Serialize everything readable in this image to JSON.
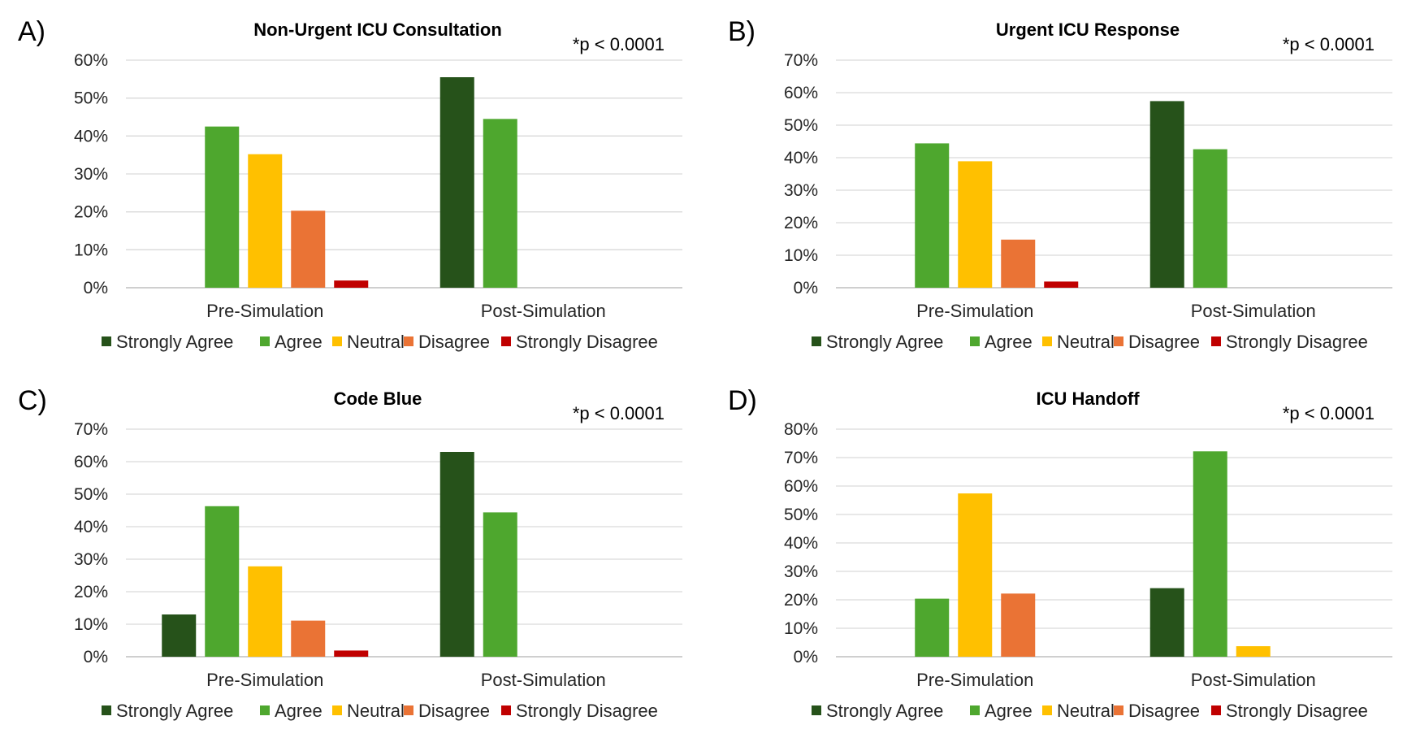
{
  "legend": [
    {
      "name": "Strongly Agree",
      "color": "#26521a"
    },
    {
      "name": "Agree",
      "color": "#4ea72e"
    },
    {
      "name": "Neutral",
      "color": "#ffc000"
    },
    {
      "name": "Disagree",
      "color": "#ea7335"
    },
    {
      "name": "Strongly Disagree",
      "color": "#c00000"
    }
  ],
  "chart_data": [
    {
      "type": "bar",
      "panel_label": "A)",
      "title": "Non-Urgent ICU Consultation",
      "annotation": "*p < 0.0001",
      "categories": [
        "Pre-Simulation",
        "Post-Simulation"
      ],
      "ylim": [
        0,
        60
      ],
      "yticks": [
        "0%",
        "10%",
        "20%",
        "30%",
        "40%",
        "50%",
        "60%"
      ],
      "series": [
        {
          "name": "Strongly Agree",
          "values": [
            0,
            55.5
          ]
        },
        {
          "name": "Agree",
          "values": [
            42.5,
            44.5
          ]
        },
        {
          "name": "Neutral",
          "values": [
            35.2,
            0
          ]
        },
        {
          "name": "Disagree",
          "values": [
            20.3,
            0
          ]
        },
        {
          "name": "Strongly Disagree",
          "values": [
            1.9,
            0
          ]
        }
      ],
      "legend_position": "bottom",
      "grid": true
    },
    {
      "type": "bar",
      "panel_label": "B)",
      "title": "Urgent ICU Response",
      "annotation": "*p < 0.0001",
      "categories": [
        "Pre-Simulation",
        "Post-Simulation"
      ],
      "ylim": [
        0,
        70
      ],
      "yticks": [
        "0%",
        "10%",
        "20%",
        "30%",
        "40%",
        "50%",
        "60%",
        "70%"
      ],
      "series": [
        {
          "name": "Strongly Agree",
          "values": [
            0,
            57.4
          ]
        },
        {
          "name": "Agree",
          "values": [
            44.4,
            42.6
          ]
        },
        {
          "name": "Neutral",
          "values": [
            38.9,
            0
          ]
        },
        {
          "name": "Disagree",
          "values": [
            14.8,
            0
          ]
        },
        {
          "name": "Strongly Disagree",
          "values": [
            1.9,
            0
          ]
        }
      ],
      "legend_position": "bottom",
      "grid": true
    },
    {
      "type": "bar",
      "panel_label": "C)",
      "title": "Code Blue",
      "annotation": "*p < 0.0001",
      "categories": [
        "Pre-Simulation",
        "Post-Simulation"
      ],
      "ylim": [
        0,
        70
      ],
      "yticks": [
        "0%",
        "10%",
        "20%",
        "30%",
        "40%",
        "50%",
        "60%",
        "70%"
      ],
      "series": [
        {
          "name": "Strongly Agree",
          "values": [
            13.0,
            63.0
          ]
        },
        {
          "name": "Agree",
          "values": [
            46.3,
            44.4
          ]
        },
        {
          "name": "Neutral",
          "values": [
            27.8,
            0
          ]
        },
        {
          "name": "Disagree",
          "values": [
            11.1,
            0
          ]
        },
        {
          "name": "Strongly Disagree",
          "values": [
            1.9,
            0
          ]
        }
      ],
      "legend_position": "bottom",
      "grid": true
    },
    {
      "type": "bar",
      "panel_label": "D)",
      "title": "ICU Handoff",
      "annotation": "*p < 0.0001",
      "categories": [
        "Pre-Simulation",
        "Post-Simulation"
      ],
      "ylim": [
        0,
        80
      ],
      "yticks": [
        "0%",
        "10%",
        "20%",
        "30%",
        "40%",
        "50%",
        "60%",
        "70%",
        "80%"
      ],
      "series": [
        {
          "name": "Strongly Agree",
          "values": [
            0,
            24.1
          ]
        },
        {
          "name": "Agree",
          "values": [
            20.4,
            72.2
          ]
        },
        {
          "name": "Neutral",
          "values": [
            57.4,
            3.7
          ]
        },
        {
          "name": "Disagree",
          "values": [
            22.2,
            0
          ]
        },
        {
          "name": "Strongly Disagree",
          "values": [
            0,
            0
          ]
        }
      ],
      "legend_position": "bottom",
      "grid": true
    }
  ]
}
